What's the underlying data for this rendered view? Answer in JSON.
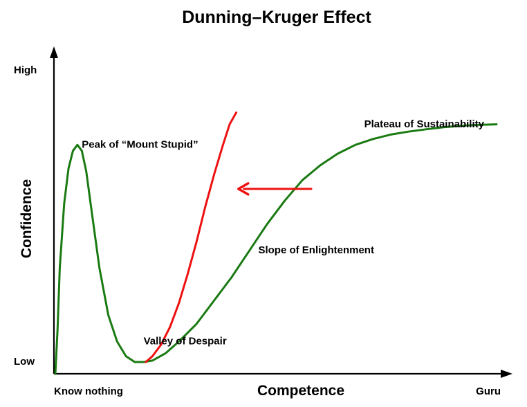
{
  "chart_data": {
    "type": "line",
    "title": "Dunning–Kruger Effect",
    "xlabel": "Competence",
    "ylabel": "Confidence",
    "x_tick_labels": [
      "Know nothing",
      "Guru"
    ],
    "y_tick_labels": [
      "Low",
      "High"
    ],
    "xlim": [
      0,
      100
    ],
    "ylim": [
      0,
      100
    ],
    "grid": false,
    "legend": "none",
    "annotations": [
      {
        "text": "Peak of “Mount Stupid”",
        "x": 6,
        "y": 77
      },
      {
        "text": "Valley of Despair",
        "x": 20,
        "y": 10
      },
      {
        "text": "Slope of Enlightenment",
        "x": 46,
        "y": 41
      },
      {
        "text": "Plateau of Sustainability",
        "x": 70,
        "y": 84
      }
    ],
    "series": [
      {
        "color": "#1a7a12",
        "x": [
          0,
          0.5,
          1,
          2,
          3,
          4,
          5,
          6,
          7,
          8,
          10,
          12,
          14,
          16,
          18,
          20,
          22,
          25,
          28,
          32,
          36,
          40,
          44,
          48,
          52,
          56,
          60,
          64,
          68,
          72,
          76,
          80,
          84,
          88,
          92,
          96,
          100
        ],
        "y": [
          0,
          15,
          36,
          58,
          70,
          76,
          78,
          76,
          69,
          58,
          36,
          20,
          11,
          6,
          4,
          4,
          4.5,
          7,
          11,
          17,
          25,
          33,
          42,
          51,
          59,
          66,
          71,
          75,
          78,
          80,
          81.5,
          82.5,
          83.3,
          84,
          84.5,
          84.8,
          85
        ]
      },
      {
        "color": "#ee1111",
        "x": [
          20.5,
          22,
          24,
          26,
          28,
          30,
          32,
          34,
          36,
          38,
          39.5,
          41
        ],
        "y": [
          4,
          6,
          10,
          16,
          24,
          34,
          45,
          57,
          68,
          78,
          85,
          89
        ]
      }
    ],
    "arrow": {
      "color": "#ee1111",
      "from": {
        "x": 58,
        "y": 63
      },
      "to": {
        "x": 41.5,
        "y": 63
      }
    }
  }
}
